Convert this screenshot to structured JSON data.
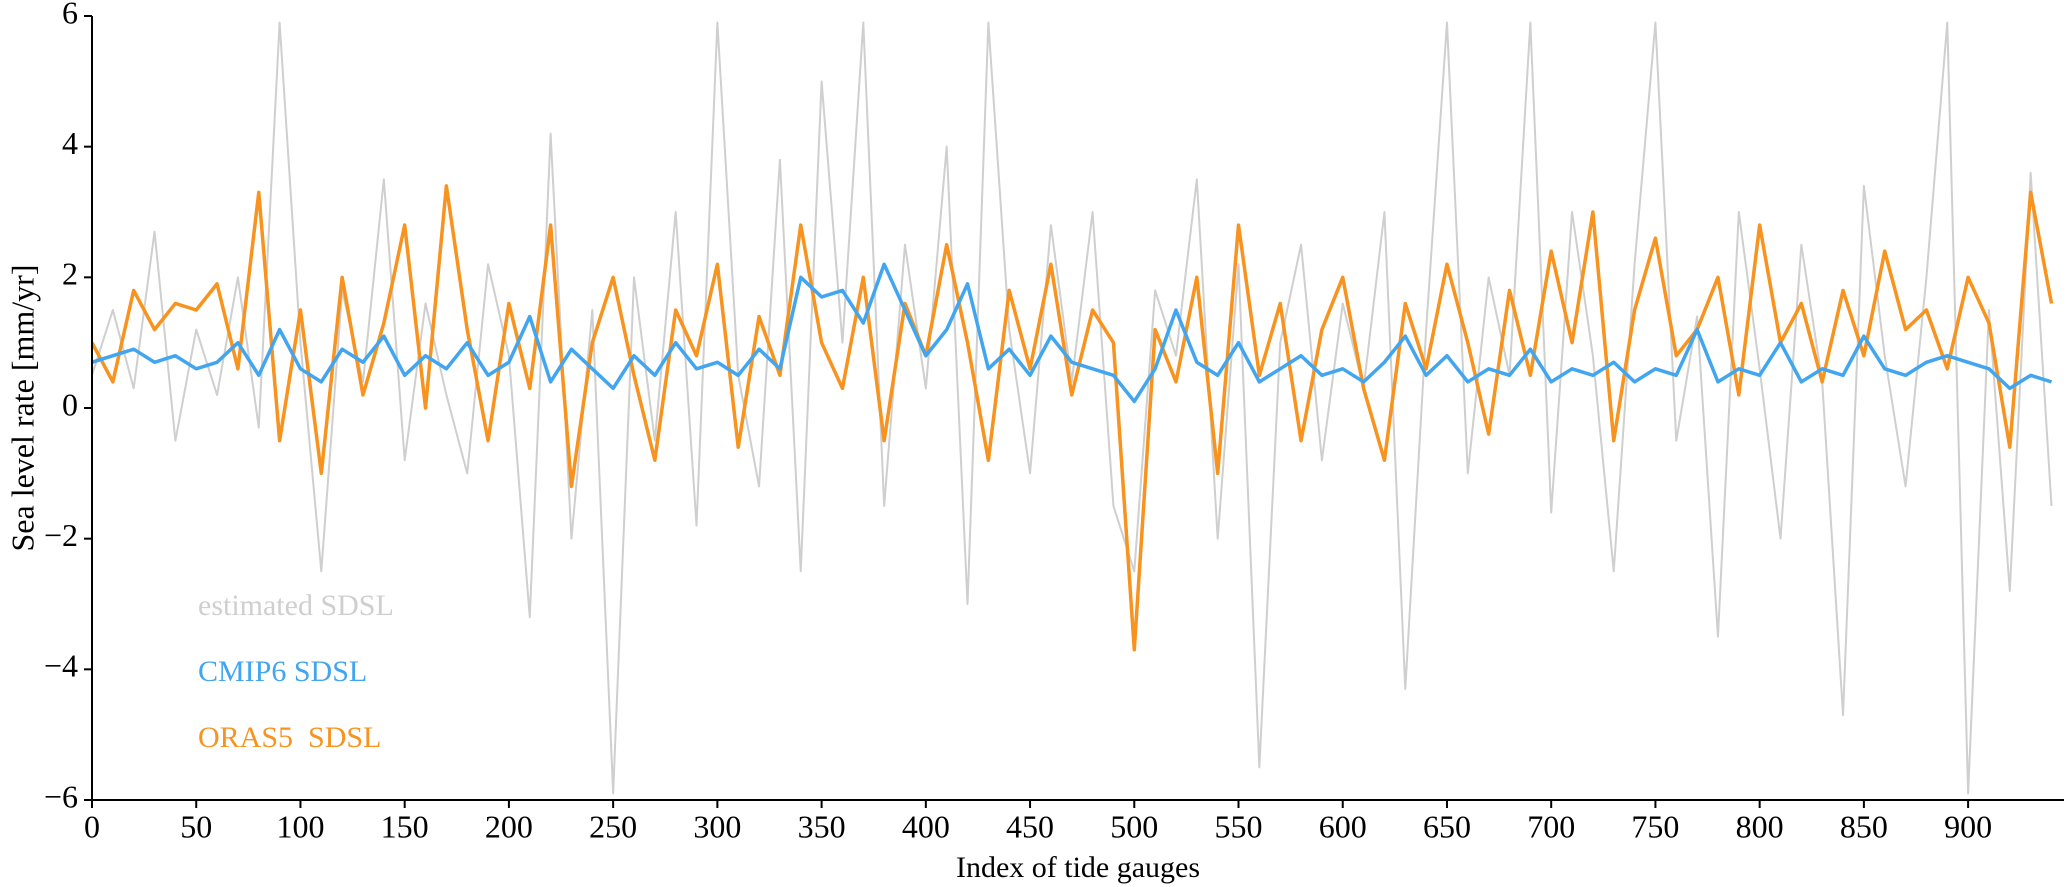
{
  "chart_data": {
    "type": "line",
    "xlabel": "Index of tide gauges",
    "ylabel": "Sea level rate [mm/yr]",
    "x": [
      0,
      10,
      20,
      30,
      40,
      50,
      60,
      70,
      80,
      90,
      100,
      110,
      120,
      130,
      140,
      150,
      160,
      170,
      180,
      190,
      200,
      210,
      220,
      230,
      240,
      250,
      260,
      270,
      280,
      290,
      300,
      310,
      320,
      330,
      340,
      350,
      360,
      370,
      380,
      390,
      400,
      410,
      420,
      430,
      440,
      450,
      460,
      470,
      480,
      490,
      500,
      510,
      520,
      530,
      540,
      550,
      560,
      570,
      580,
      590,
      600,
      610,
      620,
      630,
      640,
      650,
      660,
      670,
      680,
      690,
      700,
      710,
      720,
      730,
      740,
      750,
      760,
      770,
      780,
      790,
      800,
      810,
      820,
      830,
      840,
      850,
      860,
      870,
      880,
      890,
      900,
      910,
      920,
      930,
      940
    ],
    "series": [
      {
        "name": "estimated SDSL",
        "color": "#cfcfcf",
        "values": [
          0.5,
          1.5,
          0.3,
          2.7,
          -0.5,
          1.2,
          0.2,
          2.0,
          -0.3,
          5.9,
          1.0,
          -2.5,
          1.8,
          0.4,
          3.5,
          -0.8,
          1.6,
          0.2,
          -1.0,
          2.2,
          0.8,
          -3.2,
          4.2,
          -2.0,
          1.5,
          -5.9,
          2.0,
          -0.5,
          3.0,
          -1.8,
          5.9,
          0.5,
          -1.2,
          3.8,
          -2.5,
          5.0,
          1.0,
          5.9,
          -1.5,
          2.5,
          0.3,
          4.0,
          -3.0,
          5.9,
          1.2,
          -1.0,
          2.8,
          0.4,
          3.0,
          -1.5,
          -2.5,
          1.8,
          0.8,
          3.5,
          -2.0,
          2.2,
          -5.5,
          1.0,
          2.5,
          -0.8,
          1.6,
          0.3,
          3.0,
          -4.3,
          1.2,
          5.9,
          -1.0,
          2.0,
          0.5,
          5.9,
          -1.6,
          3.0,
          0.8,
          -2.5,
          2.2,
          5.9,
          -0.5,
          1.4,
          -3.5,
          3.0,
          0.6,
          -2.0,
          2.5,
          0.4,
          -4.7,
          3.4,
          0.8,
          -1.2,
          2.0,
          5.9,
          -5.9,
          1.5,
          -2.8,
          3.6,
          -1.5
        ]
      },
      {
        "name": "CMIP6 SDSL",
        "color": "#42a5f0",
        "values": [
          0.7,
          0.8,
          0.9,
          0.7,
          0.8,
          0.6,
          0.7,
          1.0,
          0.5,
          1.2,
          0.6,
          0.4,
          0.9,
          0.7,
          1.1,
          0.5,
          0.8,
          0.6,
          1.0,
          0.5,
          0.7,
          1.4,
          0.4,
          0.9,
          0.6,
          0.3,
          0.8,
          0.5,
          1.0,
          0.6,
          0.7,
          0.5,
          0.9,
          0.6,
          2.0,
          1.7,
          1.8,
          1.3,
          2.2,
          1.5,
          0.8,
          1.2,
          1.9,
          0.6,
          0.9,
          0.5,
          1.1,
          0.7,
          0.6,
          0.5,
          0.1,
          0.6,
          1.5,
          0.7,
          0.5,
          1.0,
          0.4,
          0.6,
          0.8,
          0.5,
          0.6,
          0.4,
          0.7,
          1.1,
          0.5,
          0.8,
          0.4,
          0.6,
          0.5,
          0.9,
          0.4,
          0.6,
          0.5,
          0.7,
          0.4,
          0.6,
          0.5,
          1.2,
          0.4,
          0.6,
          0.5,
          1.0,
          0.4,
          0.6,
          0.5,
          1.1,
          0.6,
          0.5,
          0.7,
          0.8,
          0.7,
          0.6,
          0.3,
          0.5,
          0.4
        ]
      },
      {
        "name": "ORAS5  SDSL",
        "color": "#f7931e",
        "values": [
          1.0,
          0.4,
          1.8,
          1.2,
          1.6,
          1.5,
          1.9,
          0.6,
          3.3,
          -0.5,
          1.5,
          -1.0,
          2.0,
          0.2,
          1.3,
          2.8,
          0.0,
          3.4,
          1.2,
          -0.5,
          1.6,
          0.3,
          2.8,
          -1.2,
          1.0,
          2.0,
          0.5,
          -0.8,
          1.5,
          0.8,
          2.2,
          -0.6,
          1.4,
          0.5,
          2.8,
          1.0,
          0.3,
          2.0,
          -0.5,
          1.6,
          0.8,
          2.5,
          1.0,
          -0.8,
          1.8,
          0.6,
          2.2,
          0.2,
          1.5,
          1.0,
          -3.7,
          1.2,
          0.4,
          2.0,
          -1.0,
          2.8,
          0.5,
          1.6,
          -0.5,
          1.2,
          2.0,
          0.3,
          -0.8,
          1.6,
          0.6,
          2.2,
          1.0,
          -0.4,
          1.8,
          0.5,
          2.4,
          1.0,
          3.0,
          -0.5,
          1.5,
          2.6,
          0.8,
          1.2,
          2.0,
          0.2,
          2.8,
          1.0,
          1.6,
          0.4,
          1.8,
          0.8,
          2.4,
          1.2,
          1.5,
          0.6,
          2.0,
          1.3,
          -0.6,
          3.3,
          1.6
        ]
      }
    ],
    "draw_order": [
      0,
      2,
      1
    ],
    "xlim": [
      0,
      946
    ],
    "ylim": [
      -6,
      6
    ],
    "xticks": [
      0,
      50,
      100,
      150,
      200,
      250,
      300,
      350,
      400,
      450,
      500,
      550,
      600,
      650,
      700,
      750,
      800,
      850,
      900
    ],
    "yticks": [
      {
        "value": -6,
        "label": "−6"
      },
      {
        "value": -4,
        "label": "−4"
      },
      {
        "value": -2,
        "label": "−2"
      },
      0,
      2,
      4,
      6
    ],
    "legend": "lower left"
  }
}
